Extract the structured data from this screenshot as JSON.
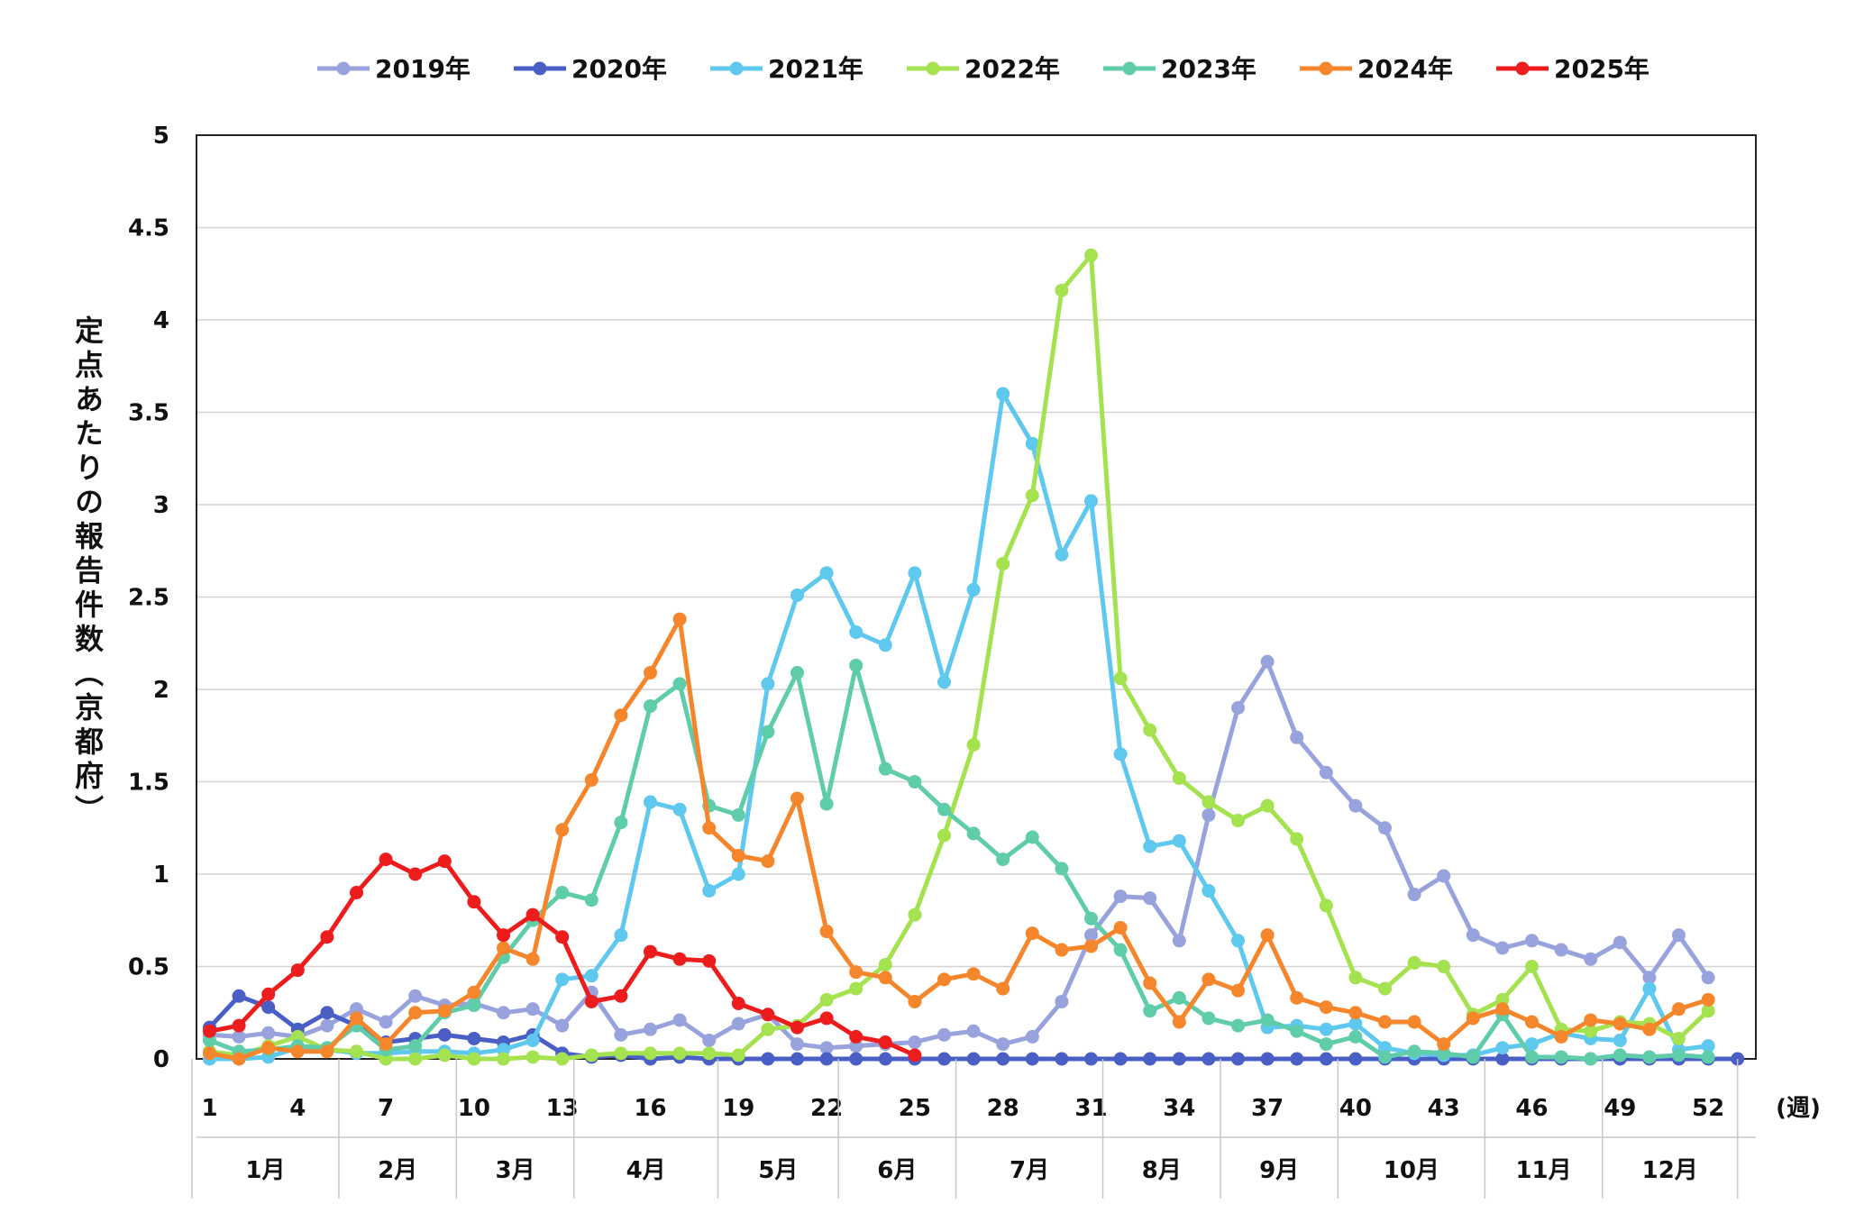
{
  "chart_data": {
    "type": "line",
    "ylabel": "定点あたりの報告件数（京都府）",
    "x_unit": "(週)",
    "ylim": [
      0,
      5
    ],
    "yticks": [
      "0",
      "0.5",
      "1",
      "1.5",
      "2",
      "2.5",
      "3",
      "3.5",
      "4",
      "4.5",
      "5"
    ],
    "xticks": [
      "1",
      "4",
      "7",
      "10",
      "13",
      "16",
      "19",
      "22",
      "25",
      "28",
      "31",
      "34",
      "37",
      "40",
      "43",
      "46",
      "49",
      "52"
    ],
    "months": [
      "1月",
      "2月",
      "3月",
      "4月",
      "5月",
      "6月",
      "7月",
      "8月",
      "9月",
      "10月",
      "11月",
      "12月"
    ],
    "grid": true,
    "legend": "top",
    "series": [
      {
        "name": "2019年",
        "color": "#98a3dd",
        "values": [
          0.13,
          0.12,
          0.14,
          0.12,
          0.18,
          0.27,
          0.2,
          0.34,
          0.29,
          0.3,
          0.25,
          0.27,
          0.18,
          0.36,
          0.13,
          0.16,
          0.21,
          0.1,
          0.19,
          0.24,
          0.08,
          0.06,
          0.07,
          0.08,
          0.09,
          0.13,
          0.15,
          0.08,
          0.12,
          0.31,
          0.67,
          0.88,
          0.87,
          0.64,
          1.32,
          1.9,
          2.15,
          1.74,
          1.55,
          1.37,
          1.25,
          0.89,
          0.99,
          0.67,
          0.6,
          0.64,
          0.59,
          0.54,
          0.63,
          0.44,
          0.67,
          0.44
        ]
      },
      {
        "name": "2020年",
        "color": "#4a5fc6",
        "values": [
          0.17,
          0.34,
          0.28,
          0.16,
          0.25,
          0.18,
          0.09,
          0.11,
          0.13,
          0.11,
          0.09,
          0.13,
          0.03,
          0.01,
          0.02,
          0.0,
          0.01,
          0.0,
          0.0,
          0.0,
          0.0,
          0.0,
          0.0,
          0.0,
          0.0,
          0.0,
          0.0,
          0.0,
          0.0,
          0.0,
          0.0,
          0.0,
          0.0,
          0.0,
          0.0,
          0.0,
          0.0,
          0.0,
          0.0,
          0.0,
          0.0,
          0.0,
          0.0,
          0.0,
          0.0,
          0.0,
          0.0,
          0.0,
          0.0,
          0.0,
          0.0,
          0.0,
          0.0
        ]
      },
      {
        "name": "2021年",
        "color": "#5ec8ef",
        "values": [
          0.0,
          0.0,
          0.01,
          0.06,
          0.05,
          0.03,
          0.03,
          0.04,
          0.04,
          0.03,
          0.05,
          0.1,
          0.43,
          0.45,
          0.67,
          1.39,
          1.35,
          0.91,
          1.0,
          2.03,
          2.51,
          2.63,
          2.31,
          2.24,
          2.63,
          2.04,
          2.54,
          3.6,
          3.33,
          2.73,
          3.02,
          1.65,
          1.15,
          1.18,
          0.91,
          0.64,
          0.17,
          0.18,
          0.16,
          0.19,
          0.06,
          0.03,
          0.02,
          0.02,
          0.06,
          0.08,
          0.14,
          0.11,
          0.1,
          0.38,
          0.05,
          0.07
        ]
      },
      {
        "name": "2022年",
        "color": "#a5e24f",
        "values": [
          0.04,
          0.02,
          0.07,
          0.12,
          0.05,
          0.04,
          0.0,
          0.0,
          0.02,
          0.0,
          0.0,
          0.01,
          0.0,
          0.02,
          0.03,
          0.03,
          0.03,
          0.03,
          0.02,
          0.16,
          0.18,
          0.32,
          0.38,
          0.51,
          0.78,
          1.21,
          1.7,
          2.68,
          3.05,
          4.16,
          4.35,
          2.06,
          1.78,
          1.52,
          1.39,
          1.29,
          1.37,
          1.19,
          0.83,
          0.44,
          0.38,
          0.52,
          0.5,
          0.24,
          0.32,
          0.5,
          0.16,
          0.15,
          0.2,
          0.19,
          0.11,
          0.26
        ]
      },
      {
        "name": "2023年",
        "color": "#5fcda9",
        "values": [
          0.1,
          0.04,
          0.05,
          0.07,
          0.06,
          0.18,
          0.05,
          0.07,
          0.25,
          0.29,
          0.55,
          0.75,
          0.9,
          0.86,
          1.28,
          1.91,
          2.03,
          1.37,
          1.32,
          1.77,
          2.09,
          1.38,
          2.13,
          1.57,
          1.5,
          1.35,
          1.22,
          1.08,
          1.2,
          1.03,
          0.76,
          0.59,
          0.26,
          0.33,
          0.22,
          0.18,
          0.21,
          0.15,
          0.08,
          0.12,
          0.01,
          0.04,
          0.03,
          0.01,
          0.24,
          0.01,
          0.01,
          0.0,
          0.02,
          0.01,
          0.02,
          0.01
        ]
      },
      {
        "name": "2024年",
        "color": "#f6862c",
        "values": [
          0.03,
          0.0,
          0.06,
          0.04,
          0.04,
          0.22,
          0.08,
          0.25,
          0.26,
          0.36,
          0.6,
          0.54,
          1.24,
          1.51,
          1.86,
          2.09,
          2.38,
          1.25,
          1.1,
          1.07,
          1.41,
          0.69,
          0.47,
          0.44,
          0.31,
          0.43,
          0.46,
          0.38,
          0.68,
          0.59,
          0.61,
          0.71,
          0.41,
          0.2,
          0.43,
          0.37,
          0.67,
          0.33,
          0.28,
          0.25,
          0.2,
          0.2,
          0.08,
          0.22,
          0.27,
          0.2,
          0.12,
          0.21,
          0.19,
          0.16,
          0.27,
          0.32
        ]
      },
      {
        "name": "2025年",
        "color": "#ee1d1d",
        "values": [
          0.15,
          0.18,
          0.35,
          0.48,
          0.66,
          0.9,
          1.08,
          1.0,
          1.07,
          0.85,
          0.67,
          0.78,
          0.66,
          0.31,
          0.34,
          0.58,
          0.54,
          0.53,
          0.3,
          0.24,
          0.17,
          0.22,
          0.12,
          0.09,
          0.02
        ]
      }
    ]
  }
}
